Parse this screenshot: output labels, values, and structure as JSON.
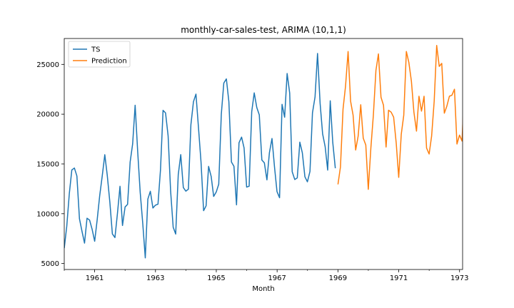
{
  "chart_data": {
    "type": "line",
    "title": "monthly-car-sales-test, ARIMA (10,1,1)",
    "xlabel": "Month",
    "ylabel": "",
    "xlim": [
      1960.0,
      1973.1
    ],
    "ylim": [
      4400,
      27600
    ],
    "xticks": [
      1961,
      1963,
      1965,
      1967,
      1969,
      1971,
      1973
    ],
    "yticks": [
      5000,
      10000,
      15000,
      20000,
      25000
    ],
    "grid": false,
    "legend_position": "top-left",
    "series": [
      {
        "name": "TS",
        "color": "#1f77b4",
        "x_start": 1960.0,
        "x_step": 0.0833,
        "values": [
          6550,
          8728,
          12026,
          14395,
          14587,
          13791,
          9498,
          8251,
          7049,
          9545,
          9364,
          8456,
          7237,
          9374,
          11837,
          13784,
          15926,
          13821,
          11143,
          7975,
          7610,
          10015,
          12759,
          8816,
          10677,
          10947,
          15200,
          17010,
          20900,
          16205,
          12143,
          8997,
          5568,
          11474,
          12256,
          10583,
          10862,
          10965,
          14405,
          20379,
          20128,
          17816,
          12268,
          8642,
          7962,
          13932,
          15936,
          12628,
          12267,
          12470,
          18944,
          21259,
          22015,
          18581,
          15175,
          10306,
          10792,
          14752,
          13754,
          11738,
          12181,
          12965,
          19990,
          23125,
          23541,
          21247,
          15189,
          14767,
          10895,
          17130,
          17697,
          16611,
          12674,
          12760,
          20249,
          22135,
          20677,
          19933,
          15388,
          15113,
          13401,
          16135,
          17562,
          14720,
          12225,
          11608,
          20985,
          19692,
          24081,
          22114,
          14220,
          13434,
          13598,
          17187,
          16119,
          13713,
          13210,
          14251,
          20139,
          21725,
          26099,
          21084,
          18024,
          16722,
          14385,
          21342,
          17180,
          14577
        ]
      },
      {
        "name": "Prediction",
        "color": "#ff7f0e",
        "x_start": 1969.0,
        "x_step": 0.0833,
        "values": [
          12950,
          14700,
          20500,
          22800,
          26300,
          21300,
          19900,
          16400,
          17800,
          20950,
          17600,
          16900,
          12450,
          16600,
          19900,
          24400,
          26050,
          21700,
          20900,
          16700,
          20400,
          20200,
          19700,
          17100,
          13650,
          18000,
          19900,
          26300,
          25200,
          23300,
          20200,
          18300,
          21800,
          20300,
          21800,
          16600,
          16000,
          17800,
          21300,
          26900,
          24800,
          25100,
          20100,
          20800,
          21800,
          21900,
          22500,
          17000,
          17900,
          17300,
          23200
        ]
      }
    ]
  }
}
